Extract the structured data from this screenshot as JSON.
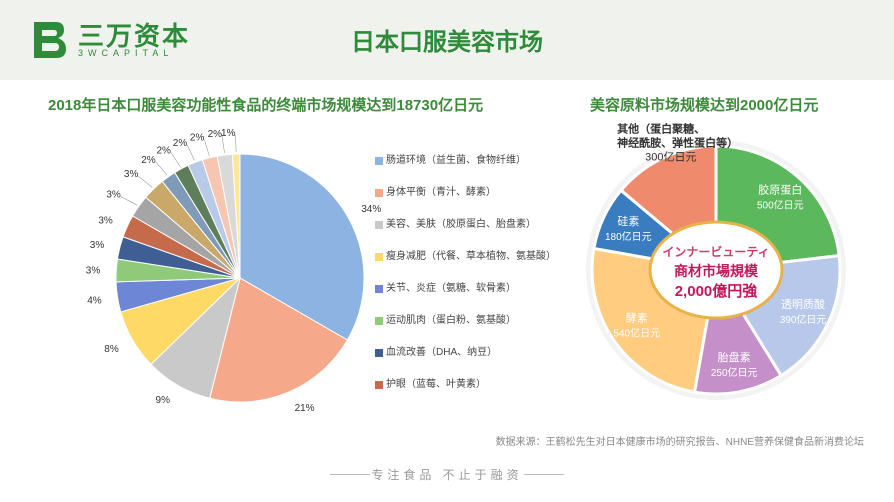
{
  "header": {
    "brand_cn": "三万资本",
    "brand_en": "3WCAPITAL",
    "title": "日本口服美容市场"
  },
  "left_title": "2018年日本口服美容功能性食品的终端市场规模达到18730亿日元",
  "right_title": "美容原料市场规模达到2000亿日元",
  "legend": [
    {
      "label": "肠道环境（益生菌、食物纤维）",
      "color": "#8db3e2"
    },
    {
      "label": "身体平衡（青汁、酵素）",
      "color": "#f5a98a"
    },
    {
      "label": "美容、美肤（胶原蛋白、胎盘素）",
      "color": "#c9c9c9"
    },
    {
      "label": "瘦身减肥（代餐、草本植物、氨基酸）",
      "color": "#ffd966"
    },
    {
      "label": "关节、炎症（氨糖、软骨素）",
      "color": "#6d86d6"
    },
    {
      "label": "运动肌肉（蛋白粉、氨基酸）",
      "color": "#8fca7a"
    },
    {
      "label": "血流改善（DHA、纳豆）",
      "color": "#3f5e93"
    },
    {
      "label": "护眼（蓝莓、叶黄素）",
      "color": "#c56a4a"
    }
  ],
  "chart_data": [
    {
      "type": "pie",
      "title": "2018年日本口服美容功能性食品的终端市场规模达到18730亿日元",
      "unit": "%",
      "slices": [
        {
          "label": "肠道环境（益生菌、食物纤维）",
          "value": 34,
          "color": "#8db3e2"
        },
        {
          "label": "身体平衡（青汁、酵素）",
          "value": 21,
          "color": "#f5a98a"
        },
        {
          "label": "美容、美肤（胶原蛋白、胎盘素）",
          "value": 9,
          "color": "#c9c9c9"
        },
        {
          "label": "瘦身减肥（代餐、草本植物、氨基酸）",
          "value": 8,
          "color": "#ffd966"
        },
        {
          "label": "关节、炎症（氨糖、软骨素）",
          "value": 4,
          "color": "#6d86d6"
        },
        {
          "label": "运动肌肉（蛋白粉、氨基酸）",
          "value": 3,
          "color": "#8fca7a"
        },
        {
          "label": "血流改善（DHA、纳豆）",
          "value": 3,
          "color": "#3f5e93"
        },
        {
          "label": "护眼（蓝莓、叶黄素）",
          "value": 3,
          "color": "#c56a4a"
        },
        {
          "label": "",
          "value": 3,
          "color": "#a5a5a5"
        },
        {
          "label": "",
          "value": 3,
          "color": "#c9a86a"
        },
        {
          "label": "",
          "value": 2,
          "color": "#7f9bb8"
        },
        {
          "label": "",
          "value": 2,
          "color": "#5e7d5a"
        },
        {
          "label": "",
          "value": 2,
          "color": "#b9c9e8"
        },
        {
          "label": "",
          "value": 2,
          "color": "#f7c6b0"
        },
        {
          "label": "",
          "value": 2,
          "color": "#d9d9d9"
        },
        {
          "label": "",
          "value": 1,
          "color": "#ffe699"
        }
      ]
    },
    {
      "type": "pie",
      "title": "美容原料市场规模达到2000亿日元",
      "center_jp": [
        "インナービューティ",
        "商材市場規模",
        "2,000億円強"
      ],
      "slices": [
        {
          "label": "胶原蛋白",
          "value_text": "500亿日元",
          "value": 500,
          "color": "#5cb85c"
        },
        {
          "label": "透明质酸",
          "value_text": "390亿日元",
          "value": 390,
          "color": "#b8c8ea"
        },
        {
          "label": "胎盘素",
          "value_text": "250亿日元",
          "value": 250,
          "color": "#c58fc9"
        },
        {
          "label": "酵素",
          "value_text": "540亿日元",
          "value": 540,
          "color": "#ffcc80"
        },
        {
          "label": "硅素",
          "value_text": "180亿日元",
          "value": 180,
          "color": "#3a7cc0"
        },
        {
          "label": "其他（蛋白聚糖、神经酰胺、弹性蛋白等）",
          "value_text": "300亿日元",
          "value": 300,
          "color": "#f08a6c"
        }
      ]
    }
  ],
  "source": "数据来源：王鹤松先生对日本健康市场的研究报告、NHNE营养保健食品新消费论坛",
  "footer": "专注食品 不止于融资"
}
